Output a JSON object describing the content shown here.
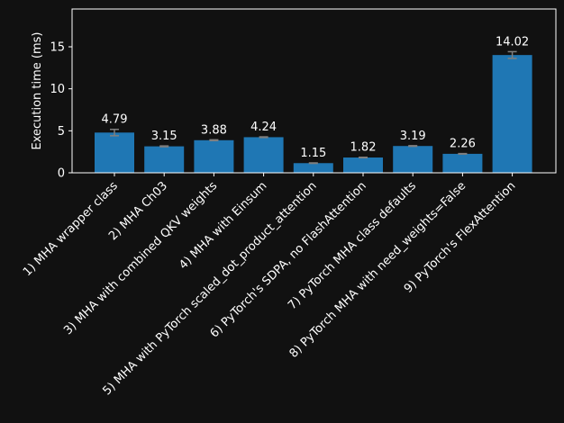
{
  "chart_data": {
    "type": "bar",
    "title": "",
    "xlabel": "",
    "ylabel": "Execution time (ms)",
    "ylim": [
      0,
      19.5
    ],
    "yticks": [
      0,
      5,
      10,
      15
    ],
    "grid": false,
    "categories": [
      "1) MHA wrapper class",
      "2) MHA Ch03",
      "3) MHA with combined QKV weights",
      "4) MHA with Einsum",
      "5) MHA with PyTorch scaled_dot_product_attention",
      "6) PyTorch's SDPA, no FlashAttention",
      "7) PyTorch MHA class defaults",
      "8) PyTorch MHA with need_weights=False",
      "9) PyTorch's FlexAttention"
    ],
    "values": [
      4.79,
      3.15,
      3.88,
      4.24,
      1.15,
      1.82,
      3.19,
      2.26,
      14.02
    ],
    "value_labels": [
      "4.79",
      "3.15",
      "3.88",
      "4.24",
      "1.15",
      "1.82",
      "3.19",
      "2.26",
      "14.02"
    ],
    "errors": [
      0.38,
      0.05,
      0.05,
      0.04,
      0.03,
      0.03,
      0.04,
      0.03,
      0.4
    ],
    "colors": {
      "bar": "#1f77b4",
      "error_bar": "#7f7f7f",
      "axes": "#ffffff",
      "text": "#ffffff",
      "background": "#111111"
    }
  }
}
